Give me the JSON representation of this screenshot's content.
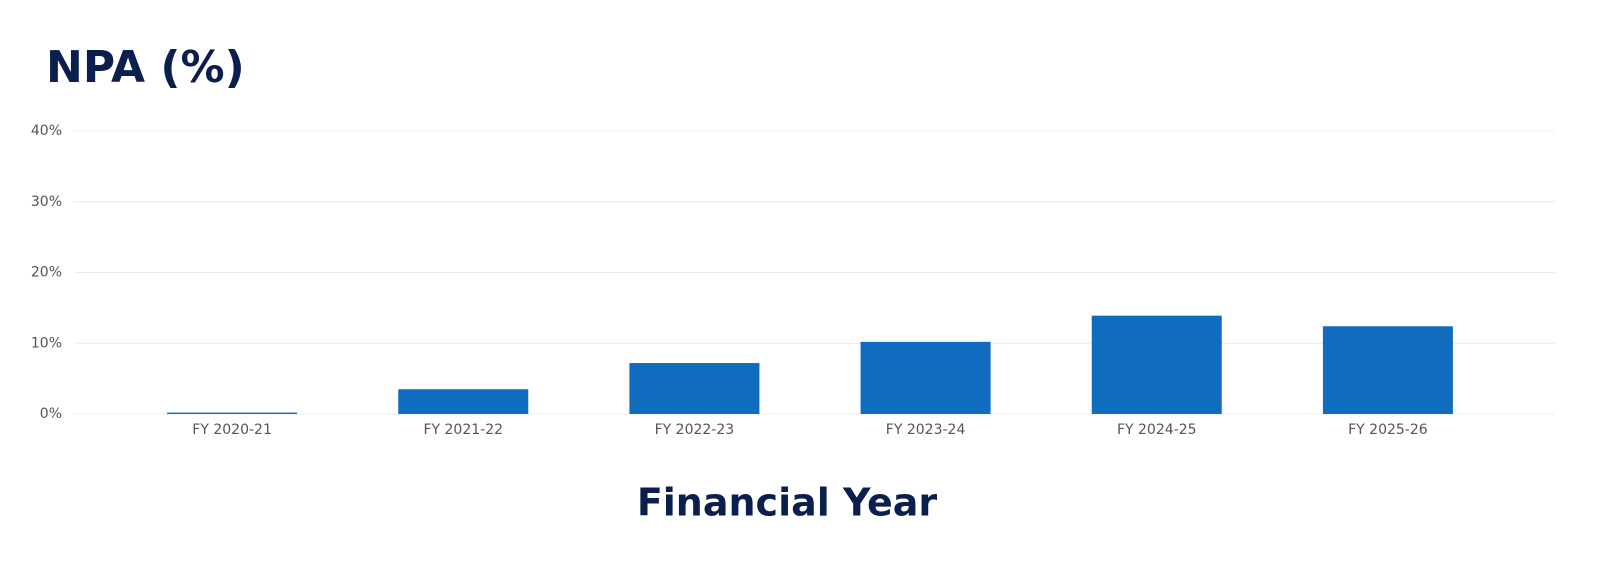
{
  "chart_data": {
    "type": "bar",
    "title": "NPA (%)",
    "x_label": "Financial Year",
    "categories": [
      "FY 2020-21",
      "FY 2021-22",
      "FY 2022-23",
      "FY 2023-24",
      "FY 2024-25",
      "FY 2025-26"
    ],
    "values": [
      0.2,
      3.5,
      7.2,
      10.2,
      13.9,
      12.4
    ],
    "color": "#0f6cbf",
    "ylim": [
      0,
      40
    ],
    "yticks": [
      {
        "value": 0,
        "label": "0%"
      },
      {
        "value": 10,
        "label": "10%"
      },
      {
        "value": 20,
        "label": "20%"
      },
      {
        "value": 30,
        "label": "30%"
      },
      {
        "value": 40,
        "label": "40%"
      }
    ],
    "grid": true
  }
}
